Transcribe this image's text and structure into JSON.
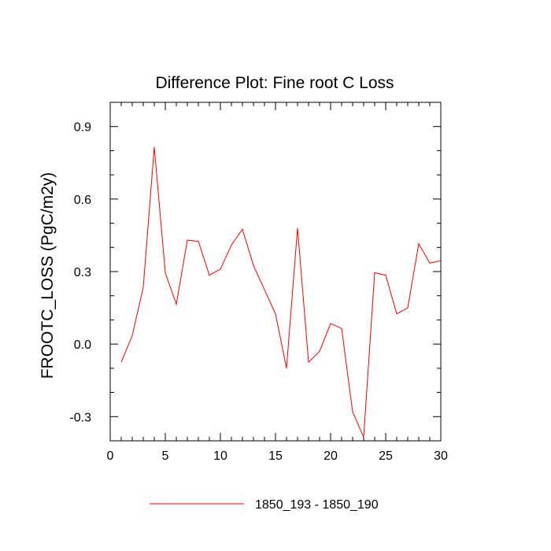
{
  "chart_data": {
    "type": "line",
    "title": "Difference Plot: Fine root C Loss",
    "xlabel": "",
    "ylabel": "FROOTC_LOSS  (PgC/m2y)",
    "xlim": [
      0,
      30
    ],
    "ylim": [
      -0.4,
      1.0
    ],
    "x_ticks": [
      0,
      5,
      10,
      15,
      20,
      25,
      30
    ],
    "x_tick_labels": [
      "0",
      "5",
      "10",
      "15",
      "20",
      "25",
      "30"
    ],
    "y_ticks": [
      -0.3,
      0.0,
      0.3,
      0.6,
      0.9
    ],
    "y_tick_labels": [
      "-0.3",
      "0.0",
      "0.3",
      "0.6",
      "0.9"
    ],
    "grid": false,
    "legend_position": "bottom",
    "series": [
      {
        "name": "1850_193 - 1850_190",
        "color": "#ff0000",
        "x": [
          1,
          2,
          3,
          4,
          5,
          6,
          7,
          8,
          9,
          10,
          11,
          12,
          13,
          14,
          15,
          16,
          17,
          18,
          19,
          20,
          21,
          22,
          23,
          24,
          25,
          26,
          27,
          28,
          29,
          30
        ],
        "y": [
          -0.075,
          0.035,
          0.235,
          0.815,
          0.295,
          0.165,
          0.43,
          0.425,
          0.285,
          0.31,
          0.41,
          0.475,
          0.325,
          0.225,
          0.125,
          -0.1,
          0.48,
          -0.075,
          -0.03,
          0.085,
          0.065,
          -0.28,
          -0.385,
          0.295,
          0.285,
          0.125,
          0.15,
          0.415,
          0.335,
          0.345
        ]
      }
    ]
  }
}
